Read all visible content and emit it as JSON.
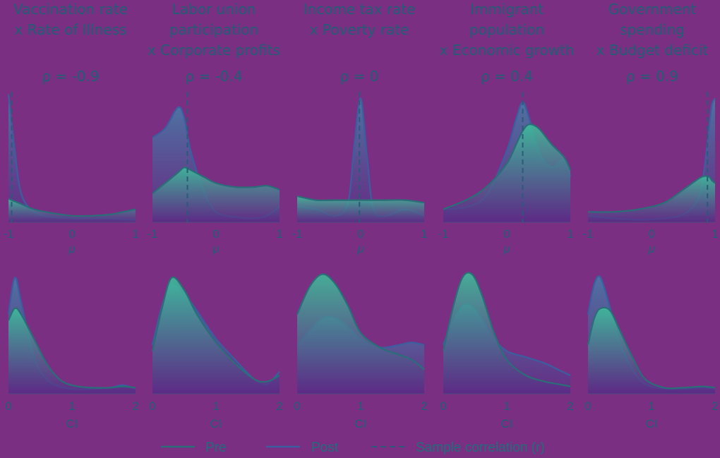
{
  "colors": {
    "background": "#7a2f82",
    "pre_line": "#2a6e78",
    "post_line": "#3a5fa0",
    "fill_top": "#3cc39a",
    "fill_bottom": "#5a2a86",
    "text": "#1f5f73"
  },
  "chart_data": {
    "type": "area",
    "legend": {
      "placement": "bottom-center",
      "entries": [
        "Pre",
        "Post",
        "Sample correlation (r)"
      ]
    },
    "panels": [
      {
        "title": [
          "Vaccination rate",
          "x Rate of Illness"
        ],
        "rho": "ρ = -0.9",
        "top": {
          "xlabel": "μ",
          "xlim": [
            -1,
            1
          ],
          "ticks": [
            "-1",
            "0",
            "1"
          ],
          "sample_r": -0.95,
          "x": [
            -1,
            -0.9,
            -0.8,
            -0.6,
            -0.3,
            0,
            0.3,
            0.6,
            0.9,
            1
          ],
          "pre": [
            0.18,
            0.16,
            0.14,
            0.1,
            0.07,
            0.05,
            0.05,
            0.06,
            0.09,
            0.1
          ],
          "post": [
            0.98,
            0.55,
            0.22,
            0.08,
            0.04,
            0.03,
            0.03,
            0.03,
            0.02,
            0.02
          ]
        },
        "bottom": {
          "xlabel": "CI",
          "xlim": [
            0,
            2
          ],
          "ticks": [
            "0",
            "1",
            "2"
          ],
          "x": [
            0,
            0.1,
            0.2,
            0.4,
            0.6,
            0.8,
            1.0,
            1.3,
            1.6,
            1.8,
            2.0
          ],
          "pre": [
            0.6,
            0.7,
            0.65,
            0.45,
            0.25,
            0.12,
            0.07,
            0.05,
            0.05,
            0.06,
            0.05
          ],
          "post": [
            0.65,
            0.95,
            0.75,
            0.3,
            0.12,
            0.06,
            0.04,
            0.04,
            0.05,
            0.07,
            0.04
          ]
        }
      },
      {
        "title": [
          "Labor union",
          "participation",
          "x Corporate profits"
        ],
        "rho": "ρ = -0.4",
        "top": {
          "xlabel": "μ",
          "xlim": [
            -1,
            1
          ],
          "ticks": [
            "-1",
            "0",
            "1"
          ],
          "sample_r": -0.45,
          "x": [
            -1,
            -0.8,
            -0.6,
            -0.5,
            -0.4,
            -0.2,
            0,
            0.3,
            0.6,
            0.8,
            1
          ],
          "pre": [
            0.22,
            0.3,
            0.38,
            0.42,
            0.4,
            0.35,
            0.3,
            0.27,
            0.27,
            0.28,
            0.25
          ],
          "post": [
            0.65,
            0.72,
            0.88,
            0.8,
            0.55,
            0.25,
            0.08,
            0.04,
            0.03,
            0.05,
            0.12
          ]
        },
        "bottom": {
          "xlabel": "CI",
          "xlim": [
            0,
            2
          ],
          "ticks": [
            "0",
            "1",
            "2"
          ],
          "x": [
            0,
            0.15,
            0.3,
            0.5,
            0.7,
            1.0,
            1.3,
            1.6,
            1.8,
            2.0
          ],
          "pre": [
            0.35,
            0.7,
            0.95,
            0.85,
            0.65,
            0.42,
            0.25,
            0.12,
            0.1,
            0.15
          ],
          "post": [
            0.4,
            0.72,
            0.9,
            0.82,
            0.68,
            0.45,
            0.28,
            0.12,
            0.08,
            0.18
          ]
        }
      },
      {
        "title": [
          "Income tax rate",
          "x Poverty rate"
        ],
        "rho": "ρ = 0",
        "top": {
          "xlabel": "μ",
          "xlim": [
            -1,
            1
          ],
          "ticks": [
            "-1",
            "0",
            "1"
          ],
          "sample_r": -0.02,
          "x": [
            -1,
            -0.7,
            -0.4,
            -0.2,
            -0.1,
            0,
            0.1,
            0.2,
            0.4,
            0.7,
            1
          ],
          "pre": [
            0.2,
            0.17,
            0.17,
            0.17,
            0.17,
            0.17,
            0.17,
            0.17,
            0.17,
            0.17,
            0.15
          ],
          "post": [
            0.12,
            0.1,
            0.05,
            0.15,
            0.6,
            0.95,
            0.5,
            0.1,
            0.05,
            0.1,
            0.05
          ]
        },
        "bottom": {
          "xlabel": "CI",
          "xlim": [
            0,
            2
          ],
          "ticks": [
            "0",
            "1",
            "2"
          ],
          "x": [
            0,
            0.2,
            0.4,
            0.6,
            0.8,
            1.0,
            1.3,
            1.6,
            1.8,
            2.0
          ],
          "pre": [
            0.65,
            0.88,
            0.98,
            0.9,
            0.72,
            0.5,
            0.38,
            0.32,
            0.28,
            0.2
          ],
          "post": [
            0.4,
            0.52,
            0.62,
            0.62,
            0.55,
            0.45,
            0.38,
            0.4,
            0.42,
            0.4
          ]
        }
      },
      {
        "title": [
          "Immigrant",
          "population",
          "x Economic growth"
        ],
        "rho": "ρ = 0.4",
        "top": {
          "xlabel": "μ",
          "xlim": [
            -1,
            1
          ],
          "ticks": [
            "-1",
            "0",
            "1"
          ],
          "sample_r": 0.25,
          "x": [
            -1,
            -0.6,
            -0.3,
            0,
            0.15,
            0.25,
            0.35,
            0.5,
            0.7,
            0.9,
            1
          ],
          "pre": [
            0.1,
            0.18,
            0.28,
            0.45,
            0.6,
            0.7,
            0.75,
            0.72,
            0.6,
            0.5,
            0.4
          ],
          "post": [
            0.1,
            0.12,
            0.22,
            0.55,
            0.8,
            0.92,
            0.8,
            0.55,
            0.42,
            0.48,
            0.35
          ]
        },
        "bottom": {
          "xlabel": "CI",
          "xlim": [
            0,
            2
          ],
          "ticks": [
            "0",
            "1",
            "2"
          ],
          "x": [
            0,
            0.15,
            0.3,
            0.45,
            0.6,
            0.8,
            1.0,
            1.3,
            1.6,
            1.8,
            2.0
          ],
          "pre": [
            0.35,
            0.7,
            0.95,
            0.98,
            0.82,
            0.5,
            0.28,
            0.15,
            0.1,
            0.08,
            0.06
          ],
          "post": [
            0.4,
            0.6,
            0.72,
            0.72,
            0.62,
            0.45,
            0.35,
            0.3,
            0.25,
            0.2,
            0.15
          ]
        }
      },
      {
        "title": [
          "Government",
          "spending",
          "x Budget deficit"
        ],
        "rho": "ρ = 0.9",
        "top": {
          "xlabel": "μ",
          "xlim": [
            -1,
            1
          ],
          "ticks": [
            "-1",
            "0",
            "1"
          ],
          "sample_r": 0.88,
          "x": [
            -1,
            -0.6,
            -0.2,
            0.2,
            0.5,
            0.7,
            0.8,
            0.9,
            0.95,
            1
          ],
          "pre": [
            0.08,
            0.08,
            0.1,
            0.15,
            0.25,
            0.32,
            0.35,
            0.35,
            0.32,
            0.3
          ],
          "post": [
            0.05,
            0.03,
            0.02,
            0.03,
            0.06,
            0.15,
            0.3,
            0.7,
            0.9,
            0.95
          ]
        },
        "bottom": {
          "xlabel": "CI",
          "xlim": [
            0,
            2
          ],
          "ticks": [
            "0",
            "1",
            "2"
          ],
          "x": [
            0,
            0.1,
            0.2,
            0.35,
            0.5,
            0.7,
            0.9,
            1.2,
            1.5,
            1.8,
            2.0
          ],
          "pre": [
            0.4,
            0.62,
            0.7,
            0.68,
            0.52,
            0.3,
            0.12,
            0.05,
            0.05,
            0.06,
            0.05
          ],
          "post": [
            0.65,
            0.9,
            0.95,
            0.7,
            0.42,
            0.2,
            0.08,
            0.04,
            0.04,
            0.05,
            0.04
          ]
        }
      }
    ]
  }
}
